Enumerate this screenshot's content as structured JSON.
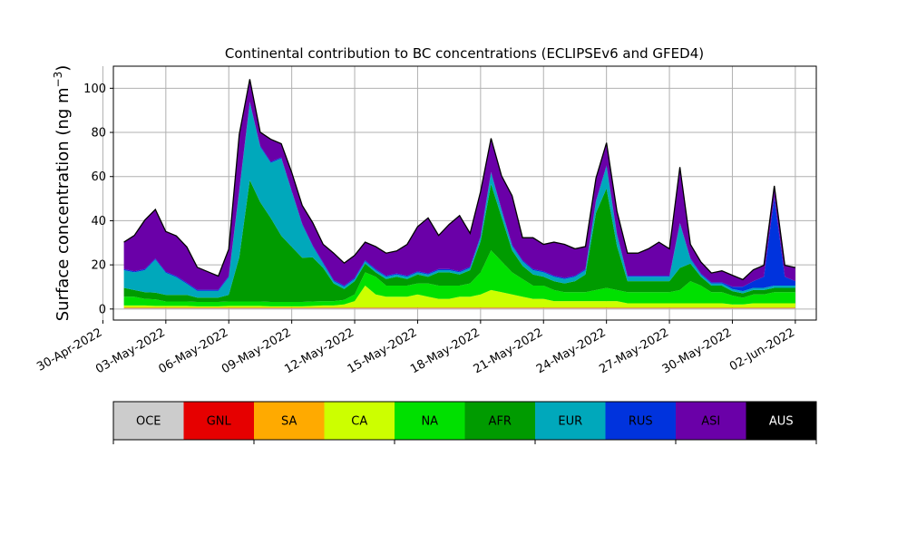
{
  "chart_data": {
    "type": "area",
    "stacked": true,
    "title": "Continental contribution to BC concentrations (ECLIPSEv6 and GFED4)",
    "ylabel": "Surface concentration (ng m",
    "ylabel_unit_sup": "−3",
    "ylabel_close": ")",
    "xlabel": "",
    "ylim": [
      -5,
      110
    ],
    "yticks": [
      0,
      20,
      40,
      60,
      80,
      100
    ],
    "xlim": [
      "2022-04-30T12:00",
      "2022-06-03T00:00"
    ],
    "xticks": [
      "2022-04-30",
      "2022-05-03",
      "2022-05-06",
      "2022-05-09",
      "2022-05-12",
      "2022-05-15",
      "2022-05-18",
      "2022-05-21",
      "2022-05-24",
      "2022-05-27",
      "2022-05-30",
      "2022-06-02"
    ],
    "xtick_labels": [
      "30-Apr-2022",
      "03-May-2022",
      "06-May-2022",
      "09-May-2022",
      "12-May-2022",
      "15-May-2022",
      "18-May-2022",
      "21-May-2022",
      "24-May-2022",
      "27-May-2022",
      "30-May-2022",
      "02-Jun-2022"
    ],
    "grid": true,
    "x": [
      "2022-05-01",
      "2022-05-01T12:00",
      "2022-05-02",
      "2022-05-02T12:00",
      "2022-05-03",
      "2022-05-03T12:00",
      "2022-05-04",
      "2022-05-04T12:00",
      "2022-05-05",
      "2022-05-05T12:00",
      "2022-05-06",
      "2022-05-06T12:00",
      "2022-05-07",
      "2022-05-07T12:00",
      "2022-05-08",
      "2022-05-08T12:00",
      "2022-05-09",
      "2022-05-09T12:00",
      "2022-05-10",
      "2022-05-10T12:00",
      "2022-05-11",
      "2022-05-11T12:00",
      "2022-05-12",
      "2022-05-12T12:00",
      "2022-05-13",
      "2022-05-13T12:00",
      "2022-05-14",
      "2022-05-14T12:00",
      "2022-05-15",
      "2022-05-15T12:00",
      "2022-05-16",
      "2022-05-16T12:00",
      "2022-05-17",
      "2022-05-17T12:00",
      "2022-05-18",
      "2022-05-18T12:00",
      "2022-05-19",
      "2022-05-19T12:00",
      "2022-05-20",
      "2022-05-20T12:00",
      "2022-05-21",
      "2022-05-21T12:00",
      "2022-05-22",
      "2022-05-22T12:00",
      "2022-05-23",
      "2022-05-23T12:00",
      "2022-05-24",
      "2022-05-24T12:00",
      "2022-05-25",
      "2022-05-25T12:00",
      "2022-05-26",
      "2022-05-26T12:00",
      "2022-05-27",
      "2022-05-27T12:00",
      "2022-05-28",
      "2022-05-28T12:00",
      "2022-05-29",
      "2022-05-29T12:00",
      "2022-05-30",
      "2022-05-30T12:00",
      "2022-05-31",
      "2022-05-31T12:00",
      "2022-06-01",
      "2022-06-01T12:00",
      "2022-06-02"
    ],
    "series": [
      {
        "name": "OCE",
        "color": "#cccccc",
        "values": [
          0.3,
          0.3,
          0.3,
          0.3,
          0.3,
          0.3,
          0.3,
          0.3,
          0.3,
          0.3,
          0.3,
          0.3,
          0.3,
          0.3,
          0.3,
          0.3,
          0.3,
          0.3,
          0.3,
          0.3,
          0.3,
          0.3,
          0.3,
          0.3,
          0.3,
          0.3,
          0.3,
          0.3,
          0.3,
          0.3,
          0.3,
          0.3,
          0.3,
          0.3,
          0.3,
          0.3,
          0.3,
          0.3,
          0.3,
          0.3,
          0.3,
          0.3,
          0.3,
          0.3,
          0.3,
          0.3,
          0.3,
          0.3,
          0.3,
          0.3,
          0.3,
          0.3,
          0.3,
          0.3,
          0.3,
          0.3,
          0.3,
          0.3,
          0.3,
          0.3,
          0.3,
          0.3,
          0.3,
          0.3,
          0.3
        ]
      },
      {
        "name": "GNL",
        "color": "#e60000",
        "values": [
          0.2,
          0.2,
          0.2,
          0.2,
          0.2,
          0.2,
          0.2,
          0.2,
          0.2,
          0.2,
          0.2,
          0.2,
          0.2,
          0.2,
          0.2,
          0.2,
          0.2,
          0.2,
          0.2,
          0.2,
          0.2,
          0.2,
          0.2,
          0.2,
          0.2,
          0.2,
          0.2,
          0.2,
          0.2,
          0.2,
          0.2,
          0.2,
          0.2,
          0.2,
          0.2,
          0.2,
          0.2,
          0.2,
          0.2,
          0.2,
          0.2,
          0.2,
          0.2,
          0.2,
          0.2,
          0.2,
          0.2,
          0.2,
          0.2,
          0.2,
          0.2,
          0.2,
          0.2,
          0.2,
          0.2,
          0.2,
          0.2,
          0.2,
          0.2,
          0.2,
          0.2,
          0.2,
          0.2,
          0.2,
          0.2
        ]
      },
      {
        "name": "SA",
        "color": "#ffaa00",
        "values": [
          0.1,
          0.1,
          0.1,
          0.1,
          0.1,
          0.1,
          0.1,
          0.1,
          0.1,
          0.1,
          0.1,
          0.1,
          0.1,
          0.1,
          0.1,
          0.1,
          0.1,
          0.1,
          0.1,
          0.1,
          0.1,
          0.1,
          0.1,
          0.1,
          0.1,
          0.1,
          0.1,
          0.1,
          0.1,
          0.1,
          0.1,
          0.1,
          0.1,
          0.1,
          0.1,
          0.1,
          0.1,
          0.1,
          0.1,
          0.1,
          0.1,
          0.1,
          0.1,
          0.1,
          0.1,
          0.1,
          0.1,
          0.1,
          0.1,
          0.1,
          0.1,
          0.1,
          0.1,
          0.1,
          0.1,
          0.1,
          0.1,
          0.1,
          0.1,
          0.1,
          0.1,
          0.1,
          0.1,
          0.1,
          0.1
        ]
      },
      {
        "name": "CA",
        "color": "#ccff00",
        "values": [
          1.0,
          1.0,
          1.0,
          0.8,
          0.8,
          0.8,
          0.8,
          0.6,
          0.6,
          0.6,
          0.8,
          0.8,
          0.8,
          0.8,
          0.6,
          0.6,
          0.6,
          0.6,
          0.8,
          1.0,
          1.0,
          1.5,
          3,
          10,
          6,
          5,
          5,
          5,
          6,
          5,
          4,
          4,
          5,
          5,
          6,
          8,
          7,
          6,
          5,
          4,
          4,
          3,
          3,
          3,
          3,
          3,
          3,
          3,
          2,
          2,
          2,
          2,
          2,
          2,
          2,
          2,
          2,
          2,
          1.5,
          1.5,
          2,
          2,
          2,
          2,
          2
        ]
      },
      {
        "name": "NA",
        "color": "#00e000",
        "values": [
          4,
          4,
          3,
          3,
          2,
          2,
          2,
          2,
          2,
          2,
          2,
          2,
          2,
          2,
          2,
          2,
          2,
          2,
          2,
          2,
          2,
          2,
          3,
          6,
          8,
          5,
          5,
          5,
          5,
          6,
          6,
          6,
          5,
          6,
          10,
          18,
          14,
          10,
          8,
          6,
          6,
          5,
          4,
          4,
          4,
          5,
          6,
          5,
          5,
          5,
          5,
          5,
          5,
          6,
          10,
          8,
          5,
          5,
          4,
          3,
          4,
          4,
          5,
          5,
          5
        ]
      },
      {
        "name": "AFR",
        "color": "#009b00",
        "values": [
          4,
          3,
          3,
          3,
          3,
          3,
          3,
          2,
          2,
          2,
          3,
          20,
          55,
          45,
          38,
          30,
          25,
          20,
          20,
          15,
          8,
          5,
          6,
          4,
          2,
          3,
          4,
          3,
          4,
          3,
          6,
          6,
          5,
          6,
          14,
          30,
          20,
          10,
          6,
          5,
          4,
          4,
          4,
          5,
          8,
          35,
          45,
          20,
          5,
          5,
          5,
          5,
          5,
          10,
          8,
          4,
          3,
          3,
          2,
          2,
          2,
          2,
          2,
          2,
          2
        ]
      },
      {
        "name": "EUR",
        "color": "#00a8bb",
        "values": [
          8,
          8,
          10,
          15,
          10,
          8,
          5,
          3,
          3,
          3,
          8,
          30,
          35,
          25,
          25,
          35,
          25,
          15,
          5,
          2,
          1,
          1,
          1,
          1,
          1,
          1,
          1,
          1,
          1,
          1,
          1,
          1,
          1,
          1,
          2,
          5,
          3,
          2,
          2,
          2,
          2,
          2,
          2,
          2,
          2,
          5,
          10,
          5,
          2,
          2,
          2,
          2,
          2,
          20,
          2,
          1,
          1,
          1,
          1,
          1,
          1,
          1,
          1,
          1,
          1
        ]
      },
      {
        "name": "RUS",
        "color": "#0033dd",
        "values": [
          0.5,
          0.5,
          0.5,
          0.5,
          0.5,
          0.5,
          0.5,
          0.5,
          0.5,
          0.5,
          0.5,
          0.5,
          0.5,
          0.5,
          0.5,
          0.5,
          0.5,
          0.5,
          0.5,
          0.5,
          0.5,
          0.5,
          0.5,
          0.5,
          0.5,
          0.5,
          0.5,
          0.5,
          0.5,
          0.5,
          0.5,
          0.5,
          0.5,
          0.5,
          0.5,
          0.5,
          0.5,
          0.5,
          0.5,
          0.5,
          0.5,
          0.5,
          0.5,
          0.5,
          0.5,
          0.5,
          0.5,
          0.5,
          0.5,
          0.5,
          0.5,
          0.5,
          0.5,
          0.5,
          0.5,
          0.5,
          0.5,
          0.5,
          1,
          2,
          3,
          5,
          40,
          4,
          2
        ]
      },
      {
        "name": "ASI",
        "color": "#6a00a8",
        "values": [
          12,
          16,
          22,
          22,
          18,
          18,
          16,
          10,
          8,
          6,
          12,
          25,
          10,
          6,
          10,
          6,
          8,
          8,
          10,
          8,
          12,
          10,
          10,
          8,
          10,
          10,
          10,
          14,
          20,
          25,
          15,
          20,
          25,
          15,
          20,
          15,
          15,
          22,
          10,
          14,
          12,
          15,
          15,
          12,
          10,
          10,
          10,
          10,
          10,
          10,
          12,
          15,
          12,
          25,
          6,
          5,
          4,
          5,
          5,
          3,
          5,
          5,
          5,
          5,
          6
        ]
      },
      {
        "name": "AUS",
        "color": "#000000",
        "values": [
          0.2,
          0.2,
          0.2,
          0.2,
          0.2,
          0.2,
          0.2,
          0.2,
          0.2,
          0.2,
          0.2,
          0.2,
          0.2,
          0.2,
          0.2,
          0.2,
          0.2,
          0.2,
          0.2,
          0.2,
          0.2,
          0.2,
          0.2,
          0.2,
          0.2,
          0.2,
          0.2,
          0.2,
          0.2,
          0.2,
          0.2,
          0.2,
          0.2,
          0.2,
          0.2,
          0.2,
          0.2,
          0.2,
          0.2,
          0.2,
          0.2,
          0.2,
          0.2,
          0.2,
          0.2,
          0.2,
          0.2,
          0.2,
          0.2,
          0.2,
          0.2,
          0.2,
          0.2,
          0.2,
          0.2,
          0.2,
          0.2,
          0.2,
          0.2,
          0.2,
          0.2,
          0.2,
          0.2,
          0.2,
          0.2
        ]
      }
    ],
    "legend": {
      "placement": "colorbar below chart",
      "labels": [
        "OCE",
        "GNL",
        "SA",
        "CA",
        "NA",
        "AFR",
        "EUR",
        "RUS",
        "ASI",
        "AUS"
      ]
    }
  }
}
